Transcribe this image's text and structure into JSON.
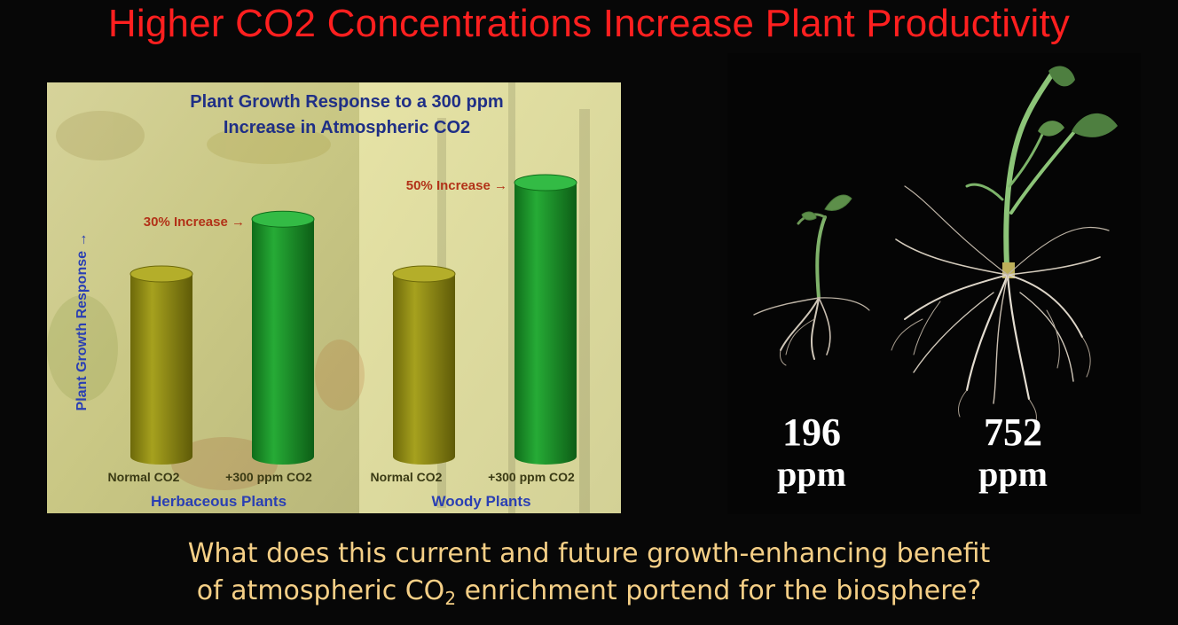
{
  "slide": {
    "title": "Higher CO2 Concentrations Increase Plant Productivity",
    "question_line1": "What does this current and future growth-enhancing benefit",
    "question_line2_pre": "of atmospheric CO",
    "question_line2_sub": "2",
    "question_line2_post": " enrichment portend for the biosphere?"
  },
  "chart_data": {
    "type": "bar",
    "title_line1": "Plant Growth Response to a 300 ppm",
    "title_line2": "Increase in Atmospheric CO2",
    "ylabel": "Plant Growth Response →",
    "categories": [
      "Normal CO2",
      "+300 ppm CO2"
    ],
    "groups": [
      {
        "name": "Herbaceous Plants",
        "values": [
          100,
          130
        ],
        "annotation": "30% Increase →"
      },
      {
        "name": "Woody Plants",
        "values": [
          100,
          150
        ],
        "annotation": "50% Increase →"
      }
    ],
    "ylim": [
      0,
      160
    ],
    "grid": false,
    "colors": {
      "normal": "#8f8a12",
      "elevated": "#1c9a2b",
      "title": "#1f2f86",
      "annotation": "#b23218",
      "group_label": "#2a3fb3",
      "tick_label": "#3a3a14"
    }
  },
  "photo": {
    "left_label_value": "196",
    "left_label_unit": "ppm",
    "right_label_value": "752",
    "right_label_unit": "ppm"
  }
}
